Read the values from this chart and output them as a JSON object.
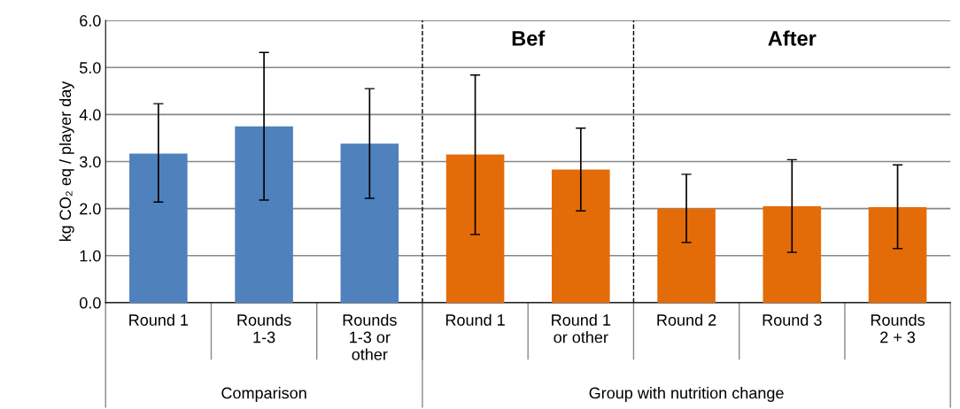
{
  "chart_data": {
    "type": "bar",
    "ylabel": "kg CO₂ eq / player day",
    "categories": [
      "Round 1",
      "Rounds\n1-3",
      "Rounds\n1-3 or\nother",
      "Round 1",
      "Round 1\nor other",
      "Round 2",
      "Round 3",
      "Rounds\n2 + 3"
    ],
    "values": [
      3.17,
      3.75,
      3.38,
      3.15,
      2.83,
      2.0,
      2.05,
      2.03
    ],
    "colors": [
      "#4f81bd",
      "#4f81bd",
      "#4f81bd",
      "#e36c09",
      "#e36c09",
      "#e36c09",
      "#e36c09",
      "#e36c09"
    ],
    "errors": [
      [
        2.14,
        4.23
      ],
      [
        2.18,
        5.32
      ],
      [
        2.22,
        4.55
      ],
      [
        1.45,
        4.84
      ],
      [
        1.95,
        3.71
      ],
      [
        1.28,
        2.73
      ],
      [
        1.07,
        3.04
      ],
      [
        1.15,
        2.93
      ]
    ],
    "ylim": [
      0,
      6
    ],
    "yticks": [
      {
        "value": 0,
        "label": "0.0"
      },
      {
        "value": 1,
        "label": "1.0"
      },
      {
        "value": 2,
        "label": "2.0"
      },
      {
        "value": 3,
        "label": "3.0"
      },
      {
        "value": 4,
        "label": "4.0"
      },
      {
        "value": 5,
        "label": "5.0"
      },
      {
        "value": 6,
        "label": "6.0"
      }
    ],
    "grid": "y",
    "annotations": [
      "Comparison",
      "Group with nutrition change",
      "Bef",
      "After"
    ]
  }
}
